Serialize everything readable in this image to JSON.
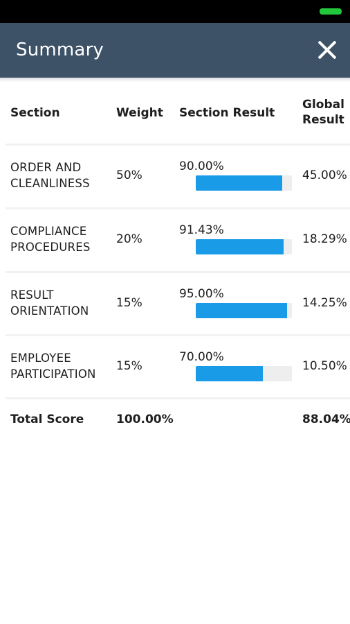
{
  "app": {
    "title": "Summary"
  },
  "colors": {
    "app_bar": "#3d5266",
    "progress_fill": "#1a9be8",
    "progress_track": "#eeeeee",
    "battery": "#22c83c"
  },
  "icons": {
    "close": "close-icon",
    "battery": "battery-icon"
  },
  "table": {
    "headers": {
      "section": "Section",
      "weight": "Weight",
      "section_result": "Section Result",
      "global_result": "Global Result"
    },
    "rows": [
      {
        "section": "ORDER AND CLEANLINESS",
        "weight": "50%",
        "section_result": "90.00%",
        "progress": 0.9,
        "global_result": "45.00%"
      },
      {
        "section": "COMPLIANCE PROCEDURES",
        "weight": "20%",
        "section_result": "91.43%",
        "progress": 0.9143,
        "global_result": "18.29%"
      },
      {
        "section": "RESULT ORIENTATION",
        "weight": "15%",
        "section_result": "95.00%",
        "progress": 0.95,
        "global_result": "14.25%"
      },
      {
        "section": "EMPLOYEE PARTICIPATION",
        "weight": "15%",
        "section_result": "70.00%",
        "progress": 0.7,
        "global_result": "10.50%"
      }
    ],
    "total": {
      "label": "Total Score",
      "weight": "100.00%",
      "global_result": "88.04%"
    }
  }
}
